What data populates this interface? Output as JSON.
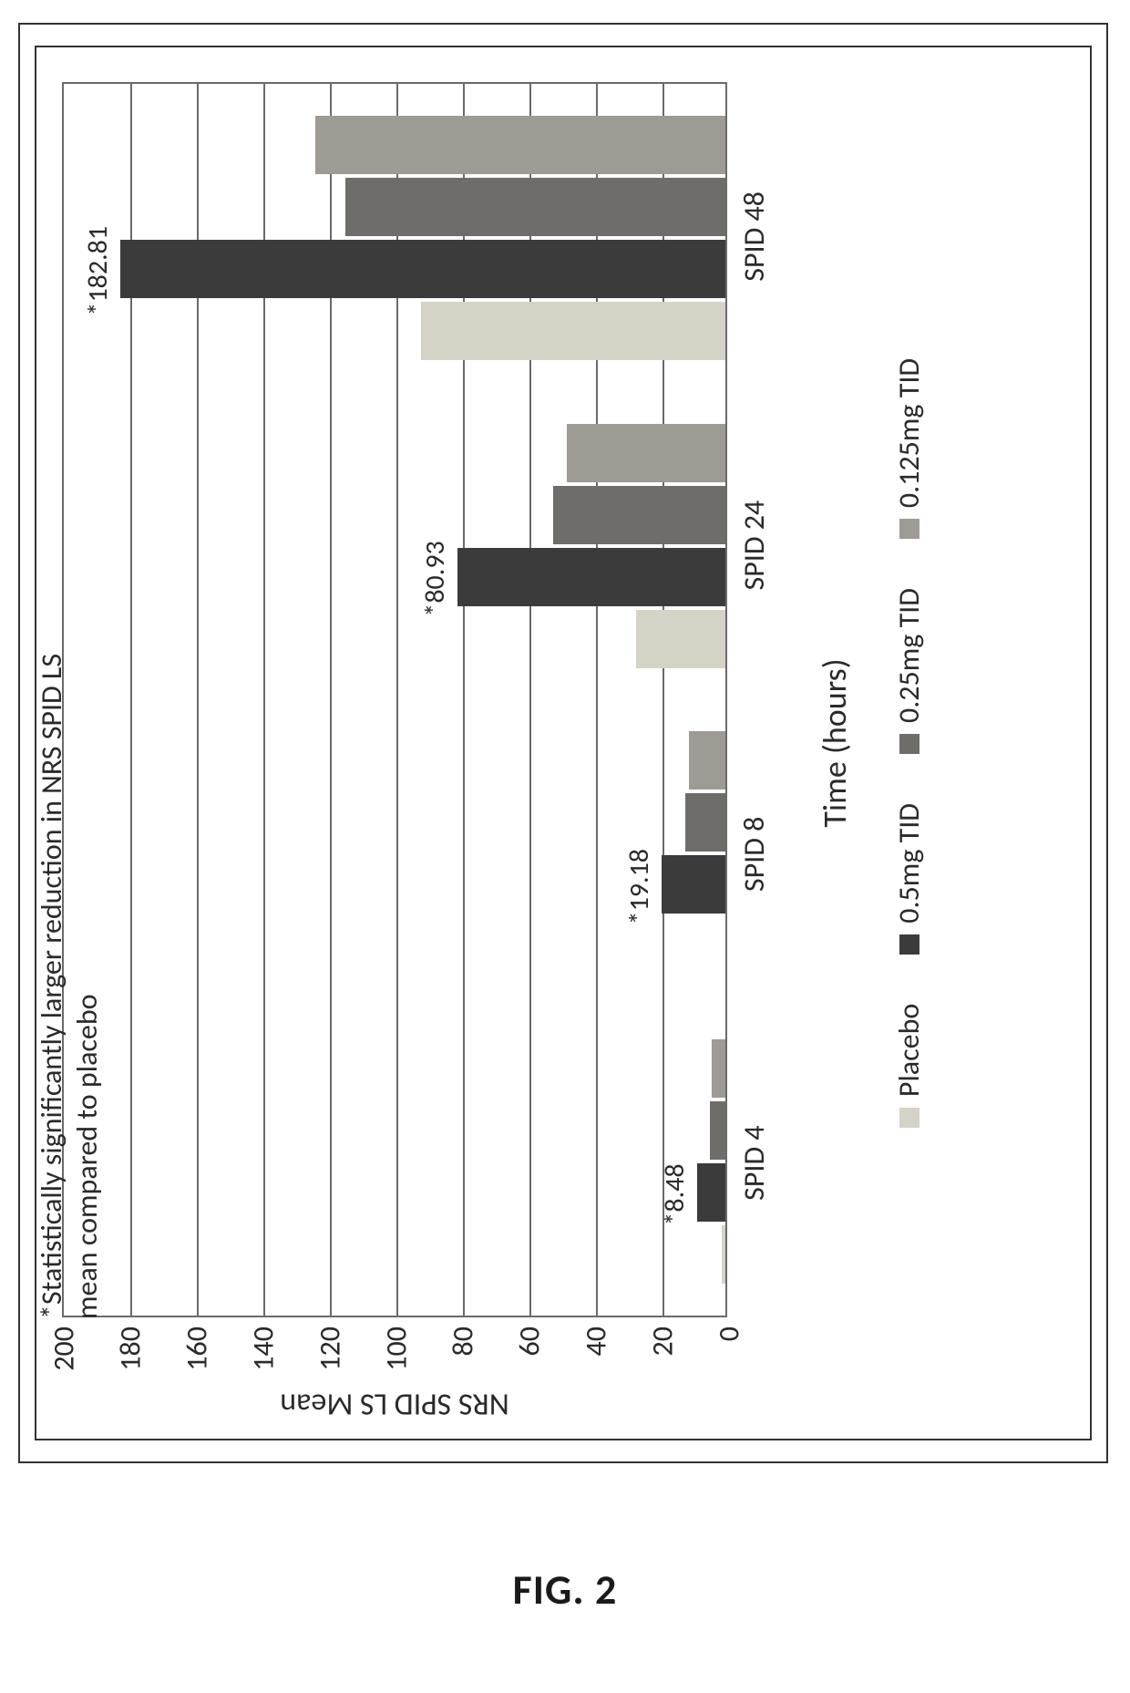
{
  "figure": {
    "caption": "FIG. 2",
    "footnote": "*Statistically significantly larger reduction in NRS SPID LS mean compared to placebo"
  },
  "chart": {
    "type": "bar",
    "y_axis_title": "NRS SPID LS Mean",
    "x_axis_title": "Time (hours)",
    "ylim": [
      0,
      200
    ],
    "ytick_step": 20,
    "yticks": [
      0,
      20,
      40,
      60,
      80,
      100,
      120,
      140,
      160,
      180,
      200
    ],
    "grid_color": "#6a6a6a",
    "background_color": "#ffffff",
    "axis_fontsize": 32,
    "axis_title_fontsize": 36,
    "value_label_fontsize": 30,
    "categories": [
      "SPID 4",
      "SPID 8",
      "SPID 24",
      "SPID 48"
    ],
    "series": [
      {
        "name": "Placebo",
        "color": "#d5d2c6",
        "values": [
          1.0,
          -3.5,
          27,
          92
        ]
      },
      {
        "name": "0.5mg TID",
        "color": "#3b3b3b",
        "values": [
          8.48,
          19.18,
          80.93,
          182.81
        ]
      },
      {
        "name": "0.25mg TID",
        "color": "#6f6d6a",
        "values": [
          4.8,
          12.0,
          52,
          115
        ]
      },
      {
        "name": "0.125mg TID",
        "color": "#9d9b94",
        "values": [
          4.0,
          11.0,
          48,
          124
        ]
      }
    ],
    "value_labels": [
      {
        "category_index": 0,
        "series_index": 1,
        "text": "*8.48"
      },
      {
        "category_index": 1,
        "series_index": 1,
        "text": "*19.18"
      },
      {
        "category_index": 2,
        "series_index": 1,
        "text": "*80.93"
      },
      {
        "category_index": 3,
        "series_index": 1,
        "text": "*182.81"
      }
    ],
    "legend_position": "bottom"
  }
}
